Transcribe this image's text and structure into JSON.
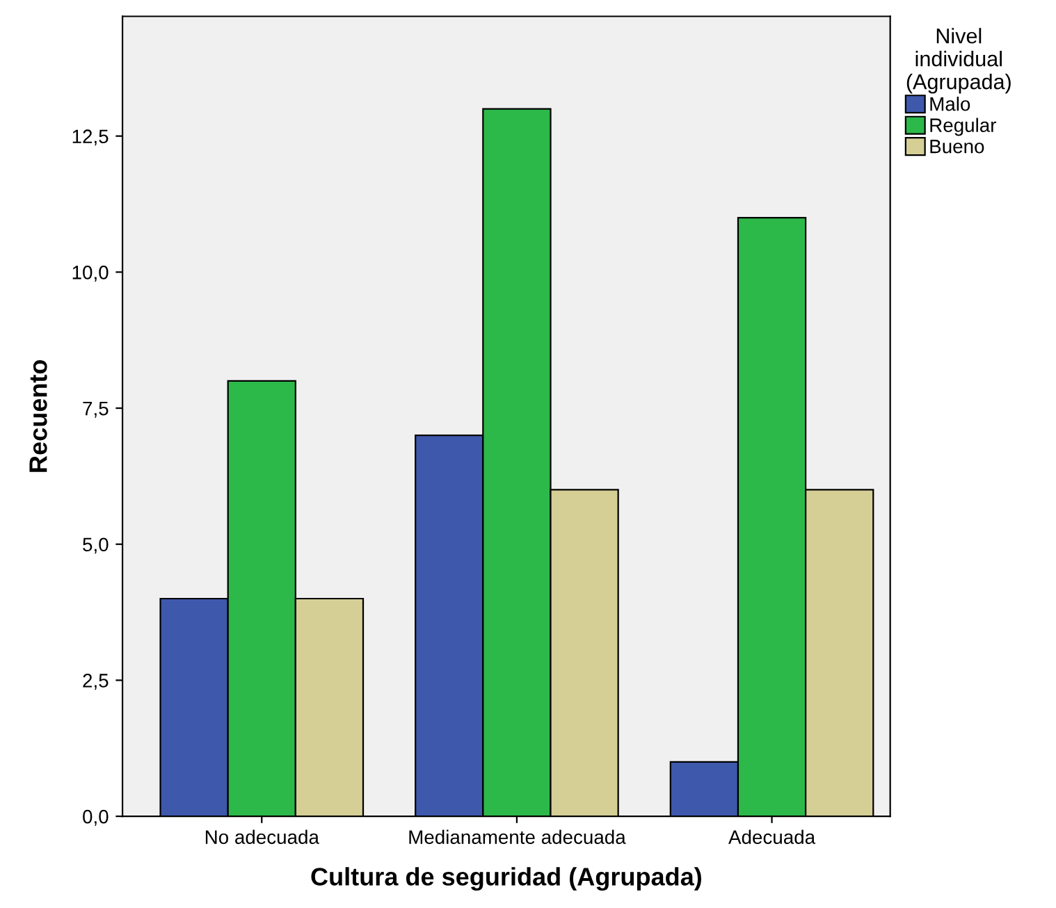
{
  "chart_data": {
    "type": "bar",
    "xlabel": "Cultura de seguridad (Agrupada)",
    "ylabel": "Recuento",
    "legend_title": "Nivel\nindividual\n(Agrupada)",
    "categories": [
      "No adecuada",
      "Medianamente adecuada",
      "Adecuada"
    ],
    "series": [
      {
        "name": "Malo",
        "color": "#3e58ac",
        "values": [
          4,
          7,
          1
        ]
      },
      {
        "name": "Regular",
        "color": "#2db84a",
        "values": [
          8,
          13,
          11
        ]
      },
      {
        "name": "Bueno",
        "color": "#d5cf96",
        "values": [
          4,
          6,
          6
        ]
      }
    ],
    "ylim": [
      0,
      14.7
    ],
    "yticks": [
      {
        "value": 0,
        "label": "0,0"
      },
      {
        "value": 2.5,
        "label": "2,5"
      },
      {
        "value": 5,
        "label": "5,0"
      },
      {
        "value": 7.5,
        "label": "7,5"
      },
      {
        "value": 10,
        "label": "10,0"
      },
      {
        "value": 12.5,
        "label": "12,5"
      }
    ],
    "grid": false,
    "legend": "top right"
  }
}
